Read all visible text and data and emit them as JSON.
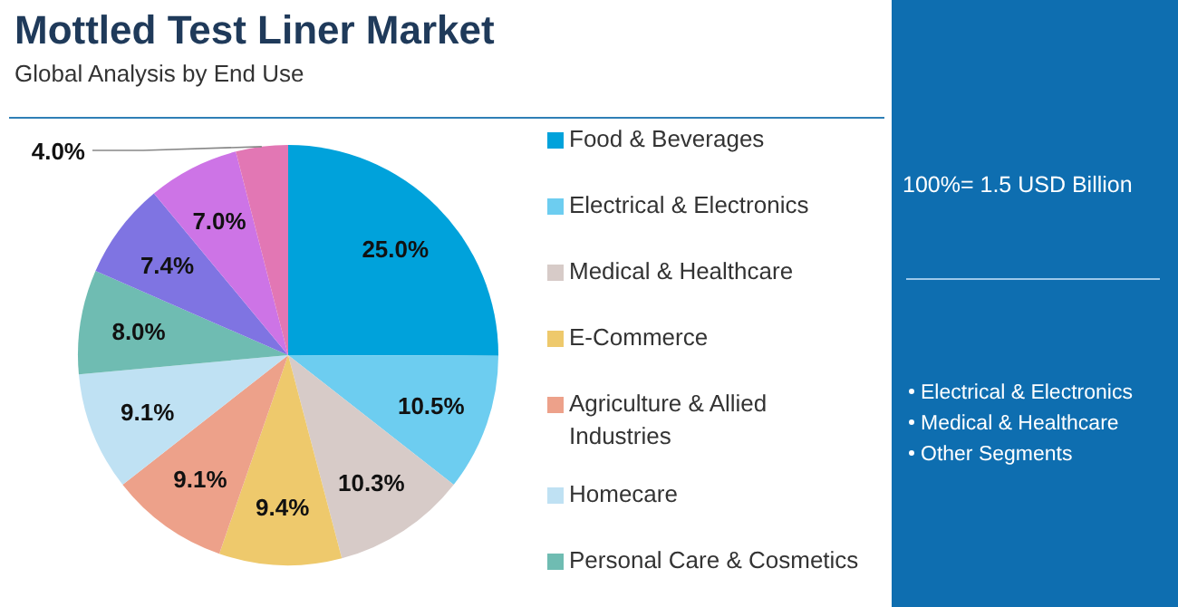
{
  "chart_data": {
    "type": "pie",
    "title": "Mottled Test Liner Market",
    "subtitle": "Global Analysis by End Use",
    "categories": [
      "Food & Beverages",
      "Electrical & Electronics",
      "Medical & Healthcare",
      "E-Commerce",
      "Agriculture & Allied Industries",
      "Homecare",
      "Personal Care & Cosmetics",
      null,
      null,
      null
    ],
    "values": [
      25.0,
      10.5,
      10.3,
      9.4,
      9.1,
      9.1,
      8.0,
      7.4,
      7.0,
      4.0
    ],
    "colors": [
      "#00a2db",
      "#6dcdf0",
      "#d7cbc8",
      "#eec96c",
      "#eda18a",
      "#bfe1f3",
      "#6fbcb2",
      "#7f74e2",
      "#cd74e6",
      "#e277b4"
    ],
    "value_labels": [
      "25.0%",
      "10.5%",
      "10.3%",
      "9.4%",
      "9.1%",
      "9.1%",
      "8.0%",
      "7.4%",
      "7.0%",
      "4.0%"
    ],
    "legend": "right",
    "annotations": [
      "100%= 1.5 USD Billion",
      "Electrical & Electronics",
      "Medical & Healthcare",
      "Other Segments"
    ]
  }
}
